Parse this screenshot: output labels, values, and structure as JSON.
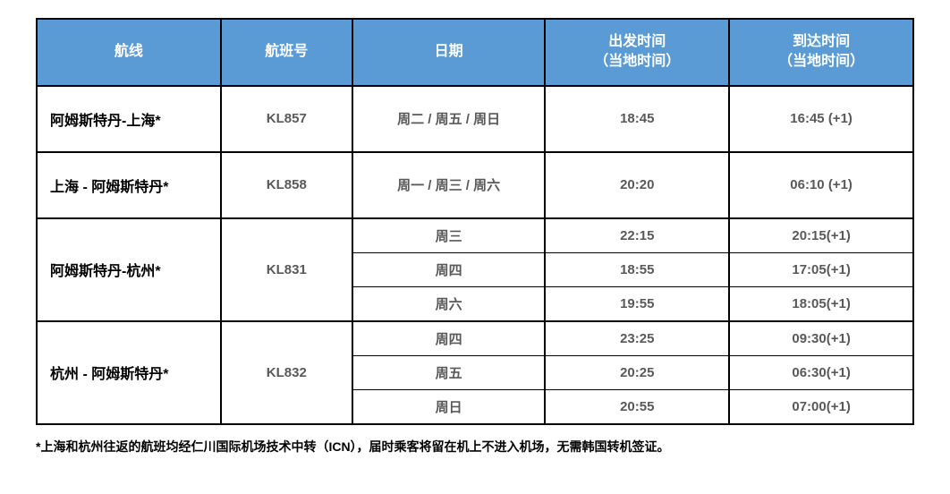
{
  "columns": [
    "航线",
    "航班号",
    "日期",
    "出发时间\n（当地时间）",
    "到达时间\n（当地时间）"
  ],
  "col_widths_pct": [
    21,
    15,
    22,
    21,
    21
  ],
  "header_bg": "#5b9bd5",
  "header_fg": "#ffffff",
  "border_color": "#000000",
  "cell_text_color": "#595959",
  "rows": [
    {
      "route": "阿姆斯特丹-上海*",
      "flight": "KL857",
      "subrows": [
        {
          "date": "周二 / 周五 / 周日",
          "dep": "18:45",
          "arr": "16:45 (+1)"
        }
      ],
      "tall": true
    },
    {
      "route": "上海 - 阿姆斯特丹*",
      "flight": "KL858",
      "subrows": [
        {
          "date": "周一 / 周三 / 周六",
          "dep": "20:20",
          "arr": "06:10 (+1)"
        }
      ],
      "tall": true
    },
    {
      "route": "阿姆斯特丹-杭州*",
      "flight": "KL831",
      "subrows": [
        {
          "date": "周三",
          "dep": "22:15",
          "arr": "20:15(+1)"
        },
        {
          "date": "周四",
          "dep": "18:55",
          "arr": "17:05(+1)"
        },
        {
          "date": "周六",
          "dep": "19:55",
          "arr": "18:05(+1)"
        }
      ],
      "tall": false
    },
    {
      "route": "杭州 - 阿姆斯特丹*",
      "flight": "KL832",
      "subrows": [
        {
          "date": "周四",
          "dep": "23:25",
          "arr": "09:30(+1)"
        },
        {
          "date": "周五",
          "dep": "20:25",
          "arr": "06:30(+1)"
        },
        {
          "date": "周日",
          "dep": "20:55",
          "arr": "07:00(+1)"
        }
      ],
      "tall": false
    }
  ],
  "footnote": "*上海和杭州往返的航班均经仁川国际机场技术中转（ICN），届时乘客将留在机上不进入机场，无需韩国转机签证。"
}
